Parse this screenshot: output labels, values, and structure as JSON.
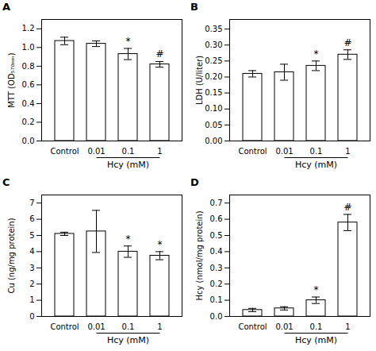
{
  "chart_data": [
    {
      "type": "bar",
      "title": "A",
      "ylabel": "MTT (OD₅₇₀ₙₘ)",
      "xlabel": "Hcy (mM)",
      "categories": [
        "Control",
        "0.01",
        "0.1",
        "1"
      ],
      "values": [
        1.07,
        1.04,
        0.93,
        0.82
      ],
      "errors": [
        0.04,
        0.03,
        0.06,
        0.03
      ],
      "annotations": [
        {
          "category": "0.1",
          "text": "*"
        },
        {
          "category": "1",
          "text": "#"
        }
      ],
      "color": "#ffffff",
      "ylim": [
        0,
        1.3
      ],
      "yticks": [
        {
          "value": 0,
          "label": "0.0"
        },
        0.2,
        0.4,
        0.6,
        0.8,
        {
          "value": 1.0,
          "label": "1.0"
        },
        1.2
      ]
    },
    {
      "type": "bar",
      "title": "B",
      "ylabel": "LDH (U/liter)",
      "xlabel": "Hcy (mM)",
      "categories": [
        "Control",
        "0.01",
        "0.1",
        "1"
      ],
      "values": [
        0.21,
        0.215,
        0.235,
        0.27
      ],
      "errors": [
        0.01,
        0.025,
        0.015,
        0.015
      ],
      "annotations": [
        {
          "category": "0.1",
          "text": "*"
        },
        {
          "category": "1",
          "text": "#"
        }
      ],
      "color": "#ffffff",
      "ylim": [
        0,
        0.38
      ],
      "yticks": [
        {
          "value": 0,
          "label": "0.00"
        },
        0.05,
        {
          "value": 0.1,
          "label": "0.10"
        },
        0.15,
        {
          "value": 0.2,
          "label": "0.20"
        },
        0.25,
        {
          "value": 0.3,
          "label": "0.30"
        },
        0.35
      ]
    },
    {
      "type": "bar",
      "title": "C",
      "ylabel": "Cu (ng/mg protein)",
      "xlabel": "Hcy (mM)",
      "categories": [
        "Control",
        "0.01",
        "0.1",
        "1"
      ],
      "values": [
        5.1,
        5.25,
        4.0,
        3.75
      ],
      "errors": [
        0.1,
        1.3,
        0.35,
        0.25
      ],
      "annotations": [
        {
          "category": "0.1",
          "text": "*"
        },
        {
          "category": "1",
          "text": "*"
        }
      ],
      "color": "#ffffff",
      "ylim": [
        0,
        7.5
      ],
      "yticks": [
        0,
        1,
        2,
        3,
        4,
        5,
        6,
        7
      ]
    },
    {
      "type": "bar",
      "title": "D",
      "ylabel": "Hcy (nmol/mg protein)",
      "xlabel": "Hcy (mM)",
      "categories": [
        "Control",
        "0.01",
        "0.1",
        "1"
      ],
      "values": [
        0.04,
        0.05,
        0.1,
        0.58
      ],
      "errors": [
        0.01,
        0.01,
        0.02,
        0.05
      ],
      "annotations": [
        {
          "category": "0.1",
          "text": "*"
        },
        {
          "category": "1",
          "text": "#"
        }
      ],
      "color": "#ffffff",
      "ylim": [
        0,
        0.75
      ],
      "yticks": [
        {
          "value": 0,
          "label": "0.0"
        },
        0.1,
        0.2,
        0.3,
        0.4,
        0.5,
        0.6,
        0.7
      ]
    }
  ]
}
